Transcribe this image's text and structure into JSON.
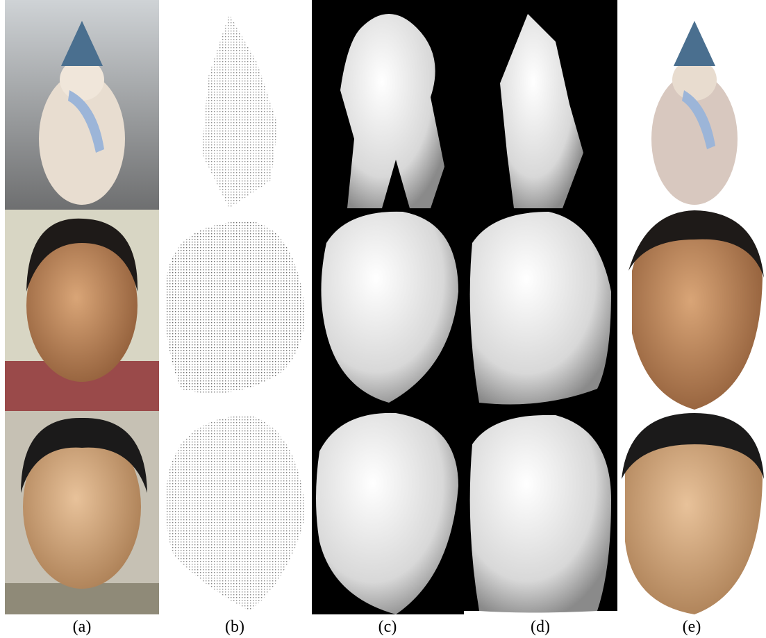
{
  "columns": [
    "(a)",
    "(b)",
    "(c)",
    "(d)",
    "(e)"
  ]
}
